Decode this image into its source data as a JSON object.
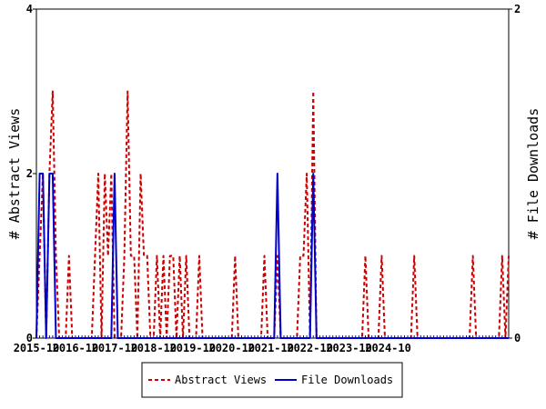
{
  "chart_data": {
    "type": "line",
    "ylabel_left": "# Abstract Views",
    "ylabel_right": "# File Downloads",
    "left_ylim": [
      0,
      4
    ],
    "right_ylim": [
      0,
      2
    ],
    "left_ticks": [
      "0",
      "2",
      "4"
    ],
    "right_ticks": [
      "0",
      "1",
      "2"
    ],
    "x_ticks": [
      "2015-10",
      "2016-10",
      "2017-10",
      "2018-10",
      "2019-10",
      "2020-10",
      "2021-10",
      "2022-10",
      "2023-10",
      "2024-10"
    ],
    "legend": [
      "Abstract Views",
      "File Downloads"
    ],
    "colors": {
      "abstract_views": "#cc0000",
      "file_downloads": "#0000cc"
    },
    "series": [
      {
        "name": "Abstract Views",
        "axis": "left",
        "style": "dashed",
        "values": [
          0,
          1,
          2,
          0,
          2,
          3,
          1,
          0,
          0,
          0,
          1,
          0,
          0,
          0,
          0,
          0,
          0,
          0,
          1,
          2,
          0,
          2,
          1,
          2,
          0,
          0,
          0,
          1,
          3,
          1,
          1,
          0,
          2,
          1,
          1,
          0,
          0,
          1,
          0,
          1,
          0,
          1,
          1,
          0,
          1,
          0,
          1,
          0,
          0,
          0,
          1,
          0,
          0,
          0,
          0,
          0,
          0,
          0,
          0,
          0,
          0,
          1,
          0,
          0,
          0,
          0,
          0,
          0,
          0,
          0,
          1,
          0,
          0,
          0,
          1,
          0,
          0,
          0,
          0,
          0,
          0,
          1,
          1,
          2,
          0,
          3,
          0,
          0,
          0,
          0,
          0,
          0,
          0,
          0,
          0,
          0,
          0,
          0,
          0,
          0,
          0,
          1,
          0,
          0,
          0,
          0,
          1,
          0,
          0,
          0,
          0,
          0,
          0,
          0,
          0,
          0,
          1,
          0,
          0,
          0,
          0,
          0,
          0,
          0,
          0,
          0,
          0,
          0,
          0,
          0,
          0,
          0,
          0,
          0,
          1,
          0,
          0,
          0,
          0,
          0,
          0,
          0,
          0,
          1,
          0,
          1
        ]
      },
      {
        "name": "File Downloads",
        "axis": "right",
        "style": "solid",
        "values": [
          0,
          1,
          1,
          0,
          1,
          1,
          0,
          0,
          0,
          0,
          0,
          0,
          0,
          0,
          0,
          0,
          0,
          0,
          0,
          0,
          0,
          0,
          0,
          0,
          1,
          0,
          0,
          0,
          0,
          0,
          0,
          0,
          0,
          0,
          0,
          0,
          0,
          0,
          0,
          0,
          0,
          0,
          0,
          0,
          0,
          0,
          0,
          0,
          0,
          0,
          0,
          0,
          0,
          0,
          0,
          0,
          0,
          0,
          0,
          0,
          0,
          0,
          0,
          0,
          0,
          0,
          0,
          0,
          0,
          0,
          0,
          0,
          0,
          0,
          1,
          0,
          0,
          0,
          0,
          0,
          0,
          0,
          0,
          0,
          0,
          1,
          0,
          0,
          0,
          0,
          0,
          0,
          0,
          0,
          0,
          0,
          0,
          0,
          0,
          0,
          0,
          0,
          0,
          0,
          0,
          0,
          0,
          0,
          0,
          0,
          0,
          0,
          0,
          0,
          0,
          0,
          0,
          0,
          0,
          0,
          0,
          0,
          0,
          0,
          0,
          0,
          0,
          0,
          0,
          0,
          0,
          0,
          0,
          0,
          0,
          0,
          0,
          0,
          0,
          0,
          0,
          0,
          0,
          0,
          0,
          0
        ]
      }
    ],
    "grid": false,
    "legend_position": "bottom-center"
  }
}
